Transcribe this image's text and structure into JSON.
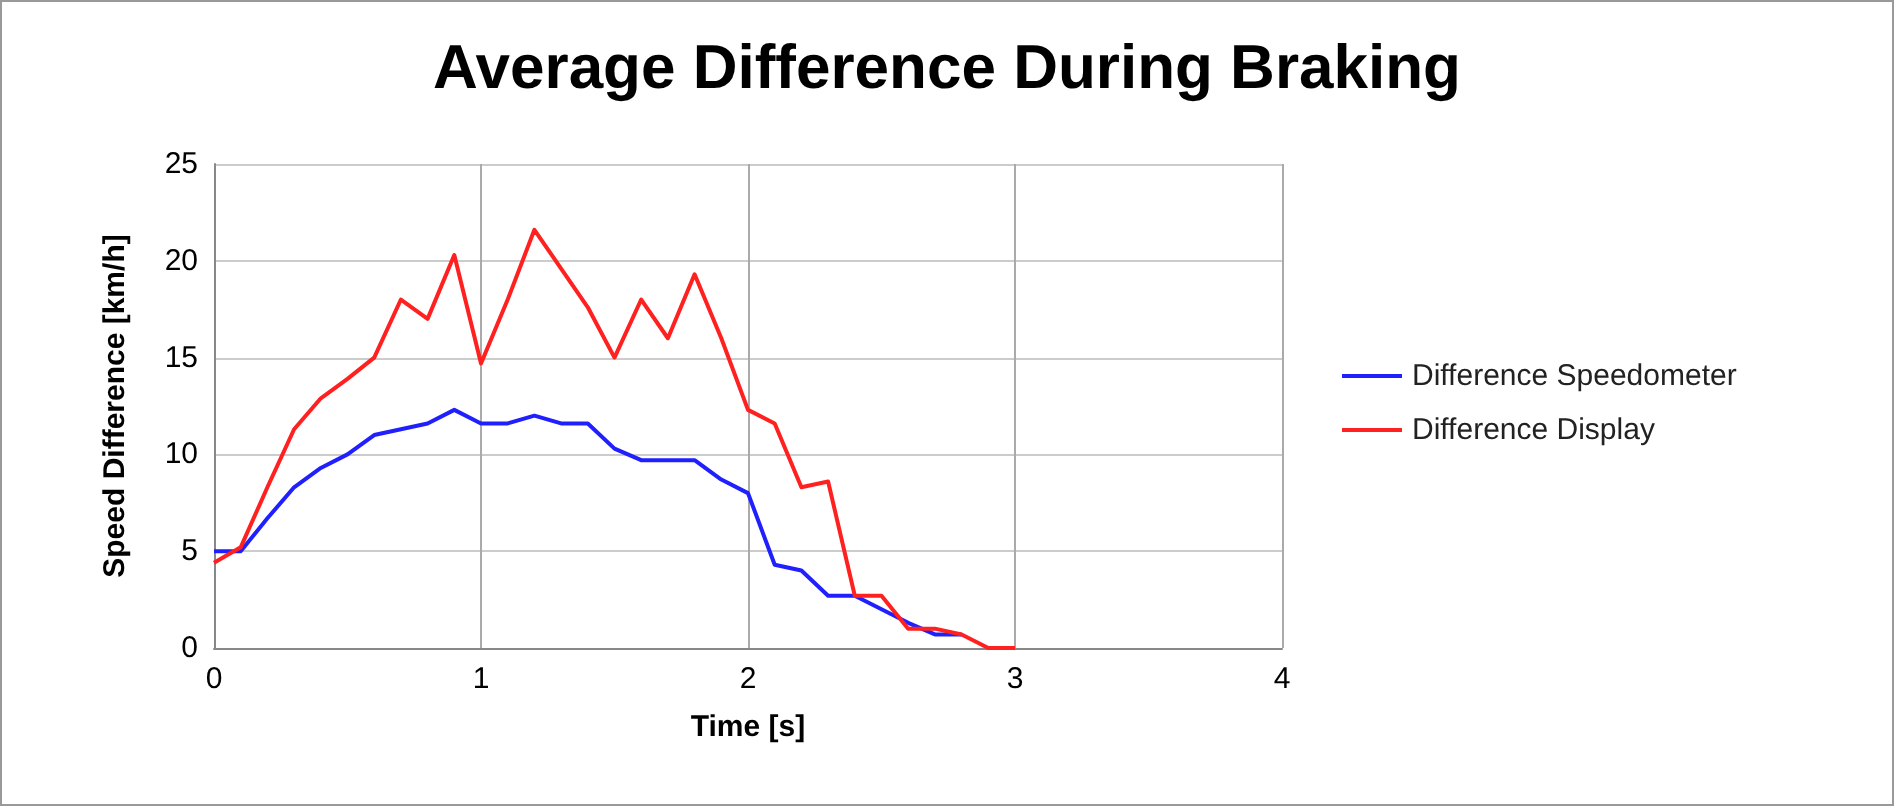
{
  "chart_data": {
    "type": "line",
    "title": "Average Difference During Braking",
    "xlabel": "Time [s]",
    "ylabel": "Speed Difference [km/h]",
    "xlim": [
      0,
      4
    ],
    "xticks": [
      0,
      1,
      2,
      3,
      4
    ],
    "ylim": [
      0,
      25
    ],
    "yticks": [
      0,
      5,
      10,
      15,
      20,
      25
    ],
    "grid": true,
    "legend": "right",
    "marker": "none",
    "series": [
      {
        "name": "Difference Speedometer",
        "color": "#2020ff",
        "x": [
          0,
          0.1,
          0.2,
          0.3,
          0.4,
          0.5,
          0.6,
          0.7,
          0.8,
          0.9,
          1.0,
          1.1,
          1.2,
          1.3,
          1.4,
          1.5,
          1.6,
          1.7,
          1.8,
          1.9,
          2.0,
          2.1,
          2.2,
          2.3,
          2.4,
          2.5,
          2.6,
          2.7,
          2.8
        ],
        "values": [
          5,
          5,
          6.7,
          8.3,
          9.3,
          10,
          11,
          11.3,
          11.6,
          12.3,
          11.6,
          11.6,
          12,
          11.6,
          11.6,
          10.3,
          9.7,
          9.7,
          9.7,
          8.7,
          8,
          4.3,
          4,
          2.7,
          2.7,
          2,
          1.3,
          0.7,
          0.7
        ]
      },
      {
        "name": "Difference Display",
        "color": "#ff2020",
        "x": [
          0,
          0.1,
          0.2,
          0.3,
          0.4,
          0.5,
          0.6,
          0.7,
          0.8,
          0.9,
          1.0,
          1.1,
          1.2,
          1.3,
          1.4,
          1.5,
          1.6,
          1.7,
          1.8,
          1.9,
          2.0,
          2.1,
          2.2,
          2.3,
          2.4,
          2.5,
          2.6,
          2.7,
          2.8,
          2.9,
          3.0
        ],
        "values": [
          4.4,
          5.2,
          8.3,
          11.3,
          12.9,
          13.9,
          15,
          18,
          17,
          20.3,
          14.7,
          18,
          21.6,
          19.6,
          17.6,
          15,
          18,
          16,
          19.3,
          16,
          12.3,
          11.6,
          8.3,
          8.6,
          2.7,
          2.7,
          1,
          1,
          0.7,
          0,
          0
        ]
      }
    ]
  }
}
